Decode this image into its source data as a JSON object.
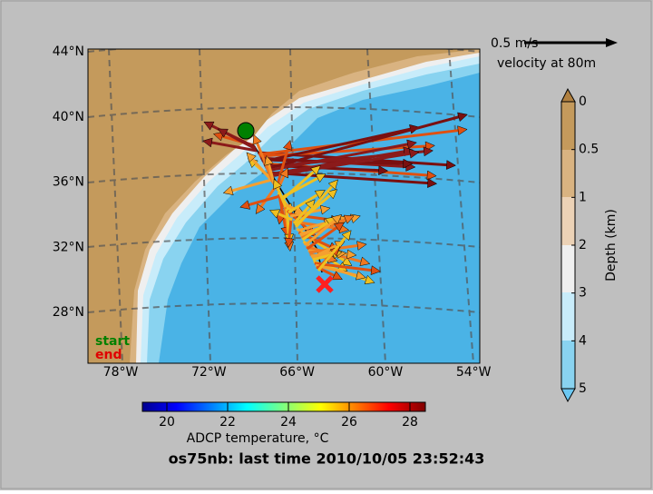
{
  "map": {
    "lat_labels": [
      "44°N",
      "40°N",
      "36°N",
      "32°N",
      "28°N"
    ],
    "lon_labels": [
      "78°W",
      "72°W",
      "66°W",
      "60°W",
      "54°W"
    ],
    "legend": {
      "start": "start",
      "end": "end"
    }
  },
  "velocity_key": {
    "scale": "0.5 m/s",
    "caption": "velocity at 80m"
  },
  "depth_colorbar": {
    "label": "Depth (km)",
    "ticks": [
      "0",
      "0.5",
      "1",
      "2",
      "3",
      "4",
      "5"
    ]
  },
  "temperature_colorbar": {
    "label": "ADCP temperature, °C",
    "ticks": [
      "20",
      "22",
      "24",
      "26",
      "28"
    ]
  },
  "title": "os75nb: last time 2010/10/05 23:52:43"
}
